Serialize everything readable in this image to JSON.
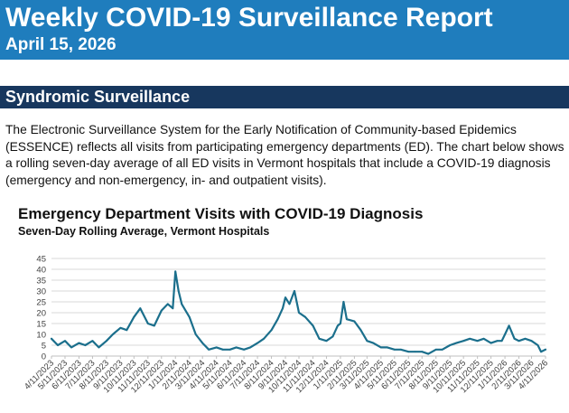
{
  "header": {
    "title": "Weekly COVID-19 Surveillance Report",
    "date": "April 15, 2026",
    "background": "#1f7dbd"
  },
  "section": {
    "title": "Syndromic Surveillance",
    "background": "#17375e",
    "paragraph": "The Electronic Surveillance System for the Early Notification of Community-based Epidemics (ESSENCE) reflects all visits from participating emergency departments (ED). The chart below shows a rolling seven-day average of all ED visits in Vermont hospitals that include a COVID-19 diagnosis (emergency and non-emergency, in- and outpatient visits)."
  },
  "chart_data": {
    "type": "line",
    "title": "Emergency Department Visits with COVID-19 Diagnosis",
    "subtitle": "Seven-Day Rolling Average, Vermont Hospitals",
    "xlabel": "",
    "ylabel": "",
    "ylim": [
      0,
      45
    ],
    "yticks": [
      0,
      5,
      10,
      15,
      20,
      25,
      30,
      35,
      40,
      45
    ],
    "grid": true,
    "legend": "none",
    "line_color": "#1b6f8c",
    "x_tick_labels": [
      "4/11/2023",
      "5/11/2023",
      "6/11/2023",
      "7/11/2023",
      "8/11/2023",
      "9/11/2023",
      "10/11/2023",
      "11/11/2023",
      "12/11/2023",
      "1/11/2024",
      "2/11/2024",
      "3/11/2024",
      "4/11/2024",
      "5/11/2024",
      "6/11/2024",
      "7/11/2024",
      "8/11/2024",
      "9/11/2024",
      "10/11/2024",
      "11/11/2024",
      "12/11/2024",
      "1/11/2025",
      "2/11/2025",
      "3/11/2025",
      "4/11/2025",
      "5/11/2025",
      "6/11/2025",
      "7/11/2025",
      "8/11/2025",
      "9/11/2025",
      "10/11/2025",
      "11/11/2025",
      "12/11/2025",
      "1/11/2026",
      "2/11/2026",
      "3/11/2026",
      "4/11/2026"
    ],
    "series": [
      {
        "x": [
          "4/11/2023",
          "4/25/2023",
          "5/11/2023",
          "5/25/2023",
          "6/11/2023",
          "6/25/2023",
          "7/11/2023",
          "7/25/2023",
          "8/11/2023",
          "8/25/2023",
          "9/11/2023",
          "9/25/2023",
          "10/11/2023",
          "10/25/2023",
          "11/11/2023",
          "11/25/2023",
          "12/11/2023",
          "12/25/2023",
          "1/5/2024",
          "1/11/2024",
          "1/18/2024",
          "1/25/2024",
          "2/11/2024",
          "2/25/2024",
          "3/11/2024",
          "3/25/2024",
          "4/11/2024",
          "4/25/2024",
          "5/11/2024",
          "5/25/2024",
          "6/11/2024",
          "6/25/2024",
          "7/11/2024",
          "7/25/2024",
          "8/11/2024",
          "8/25/2024",
          "9/5/2024",
          "9/11/2024",
          "9/20/2024",
          "10/1/2024",
          "10/11/2024",
          "10/25/2024",
          "11/11/2024",
          "11/25/2024",
          "12/11/2024",
          "12/25/2024",
          "1/5/2025",
          "1/11/2025",
          "1/18/2025",
          "1/25/2025",
          "2/11/2025",
          "2/25/2025",
          "3/11/2025",
          "3/25/2025",
          "4/11/2025",
          "4/25/2025",
          "5/11/2025",
          "5/25/2025",
          "6/11/2025",
          "6/25/2025",
          "7/11/2025",
          "7/25/2025",
          "8/11/2025",
          "8/25/2025",
          "9/11/2025",
          "9/25/2025",
          "10/11/2025",
          "10/25/2025",
          "11/11/2025",
          "11/25/2025",
          "12/11/2025",
          "12/25/2025",
          "1/4/2026",
          "1/11/2026",
          "1/20/2026",
          "2/1/2026",
          "2/11/2026",
          "2/25/2026",
          "3/11/2026",
          "3/25/2026",
          "4/1/2026",
          "4/11/2026"
        ],
        "values": [
          8,
          5,
          7,
          4,
          6,
          5,
          7,
          4,
          7,
          10,
          13,
          12,
          18,
          22,
          15,
          14,
          21,
          24,
          22,
          39,
          30,
          24,
          18,
          10,
          6,
          3,
          4,
          3,
          3,
          4,
          3,
          4,
          6,
          8,
          12,
          17,
          22,
          27,
          24,
          30,
          20,
          18,
          14,
          8,
          7,
          9,
          14,
          15,
          25,
          17,
          16,
          12,
          7,
          6,
          4,
          4,
          3,
          3,
          2,
          2,
          2,
          1,
          3,
          3,
          5,
          6,
          7,
          8,
          7,
          8,
          6,
          7,
          7,
          10,
          14,
          8,
          7,
          8,
          7,
          5,
          2,
          3
        ]
      }
    ]
  }
}
